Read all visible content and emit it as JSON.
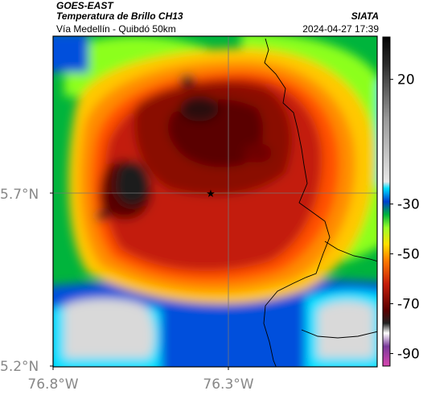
{
  "header": {
    "source": "GOES-EAST",
    "product": "Temperatura de Brillo CH13",
    "region": "Vía Medellín - Quibdó 50km",
    "organization": "SIATA",
    "datetime": "2024-04-27 17:39"
  },
  "axes": {
    "lat_ticks": [
      "5.7°N",
      "5.2°N"
    ],
    "lon_ticks": [
      "76.8°W",
      "76.3°W"
    ]
  },
  "colorbar": {
    "ticks": [
      "20",
      "-30",
      "-50",
      "-70",
      "-90"
    ],
    "tick_values": [
      20,
      -30,
      -50,
      -70,
      -90
    ],
    "range": [
      -95,
      37
    ]
  },
  "map_content": {
    "marker_icon": "star-icon",
    "colors": {
      "coldest": "#1a1a1a",
      "very_cold": "#6e0000",
      "cold": "#c31a0a",
      "mid_cold": "#ff5000",
      "mid": "#ffc800",
      "mid_warm": "#8cff1e",
      "warm": "#00b43c",
      "warmer": "#0050dc",
      "warmest": "#d9d9d9",
      "grid": "#777777",
      "coast": "#000000"
    }
  }
}
